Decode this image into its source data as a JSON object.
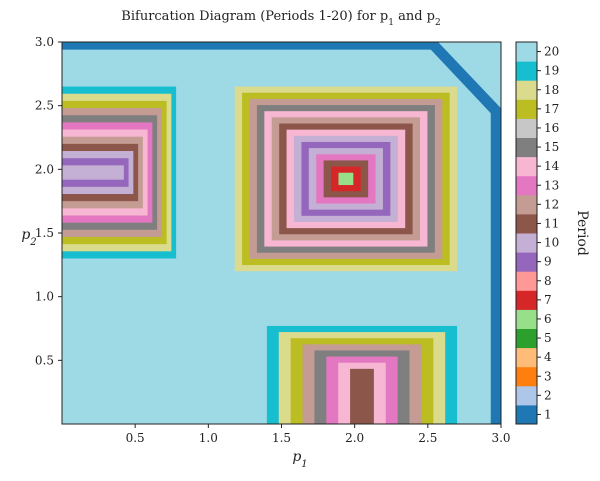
{
  "chart_data": {
    "type": "heatmap",
    "title": "Bifurcation Diagram (Periods 1-20) for p",
    "title_sub1": "1",
    "title_mid": " and p",
    "title_sub2": "2",
    "xlabel": "p",
    "xlabel_sub": "1",
    "ylabel": "p",
    "ylabel_sub": "2",
    "xlim": [
      0,
      3.0
    ],
    "ylim": [
      0,
      3.0
    ],
    "xticks": [
      0.5,
      1.0,
      1.5,
      2.0,
      2.5,
      3.0
    ],
    "xtick_labels": [
      "0.5",
      "1.0",
      "1.5",
      "2.0",
      "2.5",
      "3.0"
    ],
    "yticks": [
      0.5,
      1.0,
      1.5,
      2.0,
      2.5,
      3.0
    ],
    "ytick_labels": [
      "0.5",
      "1.0",
      "1.5",
      "2.0",
      "2.5",
      "3.0"
    ],
    "colorbar": {
      "label": "Period",
      "periods": [
        1,
        2,
        3,
        4,
        5,
        6,
        7,
        8,
        9,
        10,
        11,
        12,
        13,
        14,
        15,
        16,
        17,
        18,
        19,
        20
      ],
      "tick_labels": [
        "1",
        "2",
        "3",
        "4",
        "5",
        "6",
        "7",
        "8",
        "9",
        "10",
        "11",
        "12",
        "13",
        "14",
        "15",
        "16",
        "17",
        "18",
        "19",
        "20"
      ],
      "colors": [
        "#1f77b4",
        "#aec7e8",
        "#ff7f0e",
        "#ffbb78",
        "#2ca02c",
        "#98df8a",
        "#d62728",
        "#ff9896",
        "#9467bd",
        "#c5b0d5",
        "#8c564b",
        "#c49c94",
        "#e377c2",
        "#f7b6d2",
        "#7f7f7f",
        "#c7c7c7",
        "#bcbd22",
        "#dbdb8d",
        "#17becf",
        "#9edae5"
      ]
    },
    "background_period": 20,
    "regions": [
      {
        "name": "top-left-nest",
        "x": [
          0.0,
          0.78
        ],
        "y": [
          1.3,
          2.65
        ],
        "period_sequence": [
          19,
          18,
          17,
          12,
          15,
          13,
          14,
          12,
          11,
          10,
          9,
          10
        ]
      },
      {
        "name": "center-nest",
        "x": [
          1.18,
          2.7
        ],
        "y": [
          1.2,
          2.65
        ],
        "period_sequence": [
          18,
          17,
          12,
          15,
          14,
          12,
          11,
          14,
          10,
          9,
          10,
          13,
          11,
          7,
          6
        ]
      },
      {
        "name": "bottom-nest",
        "x": [
          1.4,
          2.7
        ],
        "y": [
          0.0,
          0.77
        ],
        "period_sequence": [
          19,
          18,
          17,
          12,
          15,
          13,
          14,
          11
        ]
      }
    ],
    "period1_band": "top edge near p2 = 3.0 and right edge near p1 = 3.0"
  }
}
